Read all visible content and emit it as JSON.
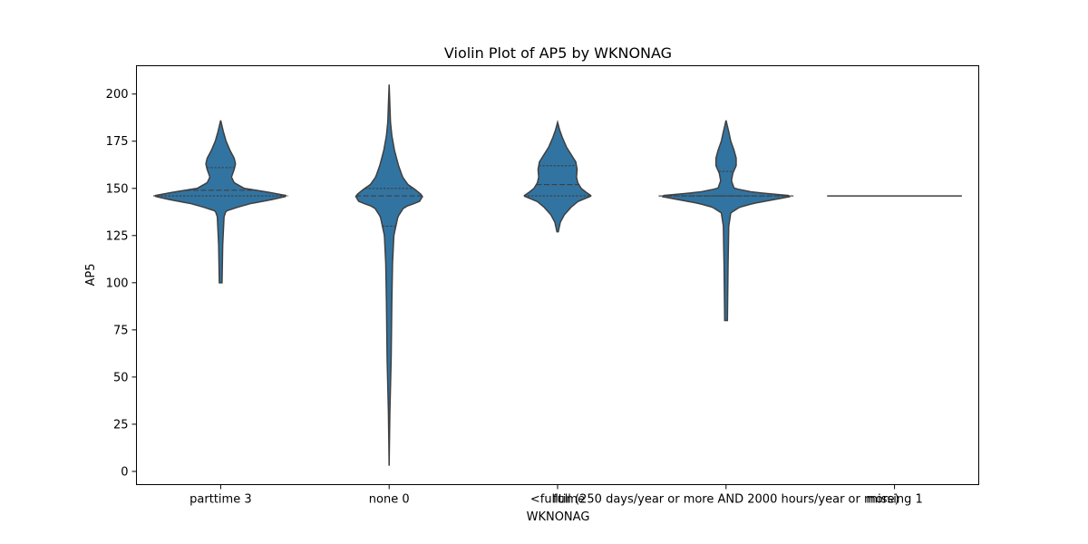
{
  "chart_data": {
    "type": "violin",
    "title": "Violin Plot of AP5 by WKNONAG",
    "xlabel": "WKNONAG",
    "ylabel": "AP5",
    "ylim": [
      -7,
      215
    ],
    "yticks": [
      0,
      25,
      50,
      75,
      100,
      125,
      150,
      175,
      200
    ],
    "categories": [
      "parttime 3",
      "none 0",
      "<fulltime",
      "full (250 days/year or more AND 2000 hours/year or more)",
      "missing 1"
    ],
    "violins": [
      {
        "category": "parttime 3",
        "min": 100,
        "max": 186,
        "quartiles": [
          146,
          149,
          161
        ],
        "profile": [
          [
            100,
            0.02
          ],
          [
            120,
            0.03
          ],
          [
            135,
            0.05
          ],
          [
            138,
            0.08
          ],
          [
            140,
            0.25
          ],
          [
            142,
            0.45
          ],
          [
            144,
            0.75
          ],
          [
            146,
            1.0
          ],
          [
            148,
            0.7
          ],
          [
            150,
            0.35
          ],
          [
            153,
            0.2
          ],
          [
            156,
            0.16
          ],
          [
            160,
            0.2
          ],
          [
            163,
            0.22
          ],
          [
            166,
            0.2
          ],
          [
            170,
            0.14
          ],
          [
            175,
            0.08
          ],
          [
            180,
            0.04
          ],
          [
            186,
            0.0
          ]
        ]
      },
      {
        "category": "none 0",
        "min": 3,
        "max": 205,
        "quartiles": [
          130,
          146,
          150
        ],
        "profile": [
          [
            3,
            0.0
          ],
          [
            30,
            0.01
          ],
          [
            60,
            0.03
          ],
          [
            90,
            0.04
          ],
          [
            110,
            0.05
          ],
          [
            125,
            0.07
          ],
          [
            135,
            0.13
          ],
          [
            140,
            0.22
          ],
          [
            143,
            0.45
          ],
          [
            146,
            0.5
          ],
          [
            149,
            0.4
          ],
          [
            152,
            0.28
          ],
          [
            156,
            0.2
          ],
          [
            162,
            0.14
          ],
          [
            170,
            0.08
          ],
          [
            178,
            0.04
          ],
          [
            185,
            0.02
          ],
          [
            195,
            0.01
          ],
          [
            205,
            0.0
          ]
        ]
      },
      {
        "category": "<fulltime",
        "min": 127,
        "max": 185,
        "quartiles": [
          146,
          152,
          162
        ],
        "profile": [
          [
            127,
            0.01
          ],
          [
            132,
            0.04
          ],
          [
            136,
            0.1
          ],
          [
            140,
            0.2
          ],
          [
            143,
            0.3
          ],
          [
            146,
            0.5
          ],
          [
            148,
            0.42
          ],
          [
            150,
            0.35
          ],
          [
            153,
            0.3
          ],
          [
            156,
            0.28
          ],
          [
            160,
            0.29
          ],
          [
            164,
            0.27
          ],
          [
            168,
            0.2
          ],
          [
            172,
            0.13
          ],
          [
            177,
            0.07
          ],
          [
            181,
            0.03
          ],
          [
            185,
            0.0
          ]
        ]
      },
      {
        "category": "full (250 days/year or more AND 2000 hours/year or more)",
        "min": 80,
        "max": 186,
        "quartiles": [
          146,
          146,
          159
        ],
        "profile": [
          [
            80,
            0.02
          ],
          [
            110,
            0.03
          ],
          [
            130,
            0.04
          ],
          [
            137,
            0.07
          ],
          [
            140,
            0.2
          ],
          [
            142,
            0.4
          ],
          [
            144,
            0.7
          ],
          [
            146,
            1.0
          ],
          [
            148,
            0.4
          ],
          [
            150,
            0.12
          ],
          [
            154,
            0.08
          ],
          [
            158,
            0.1
          ],
          [
            162,
            0.15
          ],
          [
            166,
            0.15
          ],
          [
            170,
            0.12
          ],
          [
            175,
            0.07
          ],
          [
            180,
            0.04
          ],
          [
            186,
            0.0
          ]
        ]
      },
      {
        "category": "missing 1",
        "single_value": 146
      }
    ]
  }
}
